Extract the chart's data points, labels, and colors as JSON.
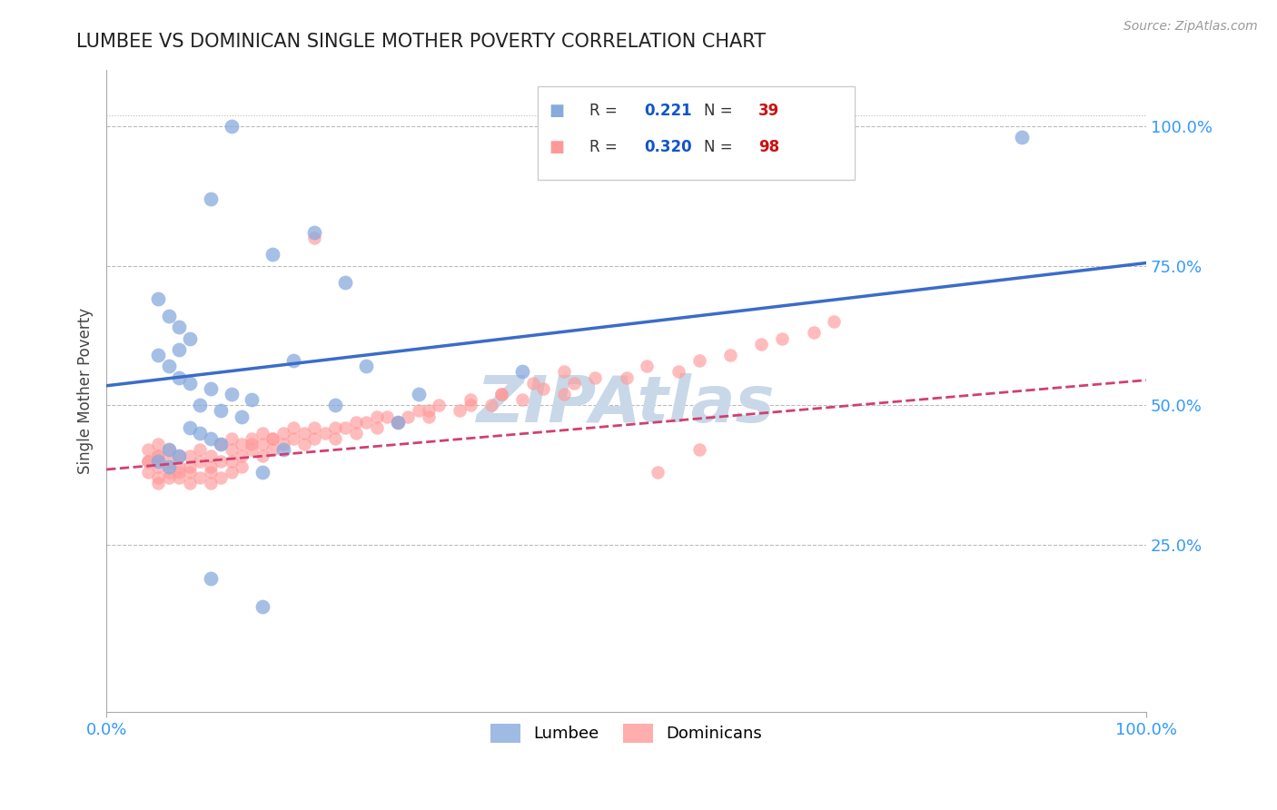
{
  "title": "LUMBEE VS DOMINICAN SINGLE MOTHER POVERTY CORRELATION CHART",
  "source_text": "Source: ZipAtlas.com",
  "ylabel": "Single Mother Poverty",
  "lumbee_R": "0.221",
  "lumbee_N": "39",
  "dominican_R": "0.320",
  "dominican_N": "98",
  "blue_scatter_color": "#88AADD",
  "pink_scatter_color": "#FF9999",
  "blue_line_color": "#3B6CC8",
  "pink_line_color": "#D04070",
  "title_color": "#222222",
  "axis_label_color": "#444444",
  "tick_color": "#3399FF",
  "grid_color": "#BBBBBB",
  "watermark_color": "#C8D8E8",
  "legend_R_color": "#1155CC",
  "legend_N_color": "#CC1111",
  "xlim": [
    0,
    1
  ],
  "ylim": [
    -0.05,
    1.1
  ],
  "ytick_positions": [
    0.25,
    0.5,
    0.75,
    1.0
  ],
  "ytick_labels": [
    "25.0%",
    "50.0%",
    "75.0%",
    "100.0%"
  ],
  "xtick_positions": [
    0.0,
    1.0
  ],
  "xtick_labels": [
    "0.0%",
    "100.0%"
  ],
  "blue_line_x0": 0.0,
  "blue_line_y0": 0.535,
  "blue_line_x1": 1.0,
  "blue_line_y1": 0.755,
  "pink_line_x0": 0.0,
  "pink_line_y0": 0.385,
  "pink_line_x1": 1.0,
  "pink_line_y1": 0.545,
  "lumbee_x": [
    0.12,
    0.1,
    0.2,
    0.16,
    0.23,
    0.05,
    0.06,
    0.07,
    0.08,
    0.05,
    0.06,
    0.07,
    0.08,
    0.1,
    0.12,
    0.14,
    0.09,
    0.11,
    0.13,
    0.22,
    0.28,
    0.08,
    0.09,
    0.1,
    0.11,
    0.06,
    0.07,
    0.4,
    0.88,
    0.1,
    0.05,
    0.06,
    0.15,
    0.18,
    0.25,
    0.07,
    0.17,
    0.3,
    0.15
  ],
  "lumbee_y": [
    1.0,
    0.87,
    0.81,
    0.77,
    0.72,
    0.69,
    0.66,
    0.64,
    0.62,
    0.59,
    0.57,
    0.55,
    0.54,
    0.53,
    0.52,
    0.51,
    0.5,
    0.49,
    0.48,
    0.5,
    0.47,
    0.46,
    0.45,
    0.44,
    0.43,
    0.42,
    0.41,
    0.56,
    0.98,
    0.19,
    0.4,
    0.39,
    0.38,
    0.58,
    0.57,
    0.6,
    0.42,
    0.52,
    0.14
  ],
  "dominican_x": [
    0.04,
    0.04,
    0.05,
    0.05,
    0.06,
    0.06,
    0.06,
    0.07,
    0.07,
    0.07,
    0.08,
    0.08,
    0.08,
    0.09,
    0.09,
    0.1,
    0.1,
    0.1,
    0.11,
    0.11,
    0.12,
    0.12,
    0.12,
    0.13,
    0.13,
    0.14,
    0.14,
    0.15,
    0.15,
    0.15,
    0.16,
    0.16,
    0.17,
    0.17,
    0.18,
    0.18,
    0.19,
    0.19,
    0.2,
    0.2,
    0.21,
    0.22,
    0.23,
    0.24,
    0.25,
    0.26,
    0.27,
    0.28,
    0.29,
    0.3,
    0.31,
    0.32,
    0.34,
    0.35,
    0.37,
    0.38,
    0.4,
    0.42,
    0.44,
    0.45,
    0.47,
    0.5,
    0.52,
    0.55,
    0.57,
    0.6,
    0.63,
    0.65,
    0.68,
    0.7,
    0.35,
    0.38,
    0.41,
    0.44,
    0.28,
    0.31,
    0.05,
    0.05,
    0.06,
    0.07,
    0.08,
    0.09,
    0.1,
    0.11,
    0.12,
    0.13,
    0.04,
    0.04,
    0.05,
    0.05,
    0.22,
    0.24,
    0.26,
    0.14,
    0.16,
    0.53,
    0.57,
    0.2
  ],
  "dominican_y": [
    0.4,
    0.38,
    0.41,
    0.39,
    0.42,
    0.4,
    0.38,
    0.41,
    0.39,
    0.37,
    0.41,
    0.39,
    0.38,
    0.4,
    0.42,
    0.39,
    0.41,
    0.38,
    0.4,
    0.43,
    0.42,
    0.44,
    0.4,
    0.43,
    0.41,
    0.42,
    0.44,
    0.41,
    0.43,
    0.45,
    0.44,
    0.42,
    0.43,
    0.45,
    0.44,
    0.46,
    0.43,
    0.45,
    0.44,
    0.46,
    0.45,
    0.44,
    0.46,
    0.45,
    0.47,
    0.46,
    0.48,
    0.47,
    0.48,
    0.49,
    0.48,
    0.5,
    0.49,
    0.51,
    0.5,
    0.52,
    0.51,
    0.53,
    0.52,
    0.54,
    0.55,
    0.55,
    0.57,
    0.56,
    0.58,
    0.59,
    0.61,
    0.62,
    0.63,
    0.65,
    0.5,
    0.52,
    0.54,
    0.56,
    0.47,
    0.49,
    0.37,
    0.36,
    0.37,
    0.38,
    0.36,
    0.37,
    0.36,
    0.37,
    0.38,
    0.39,
    0.42,
    0.4,
    0.43,
    0.41,
    0.46,
    0.47,
    0.48,
    0.43,
    0.44,
    0.38,
    0.42,
    0.8
  ]
}
